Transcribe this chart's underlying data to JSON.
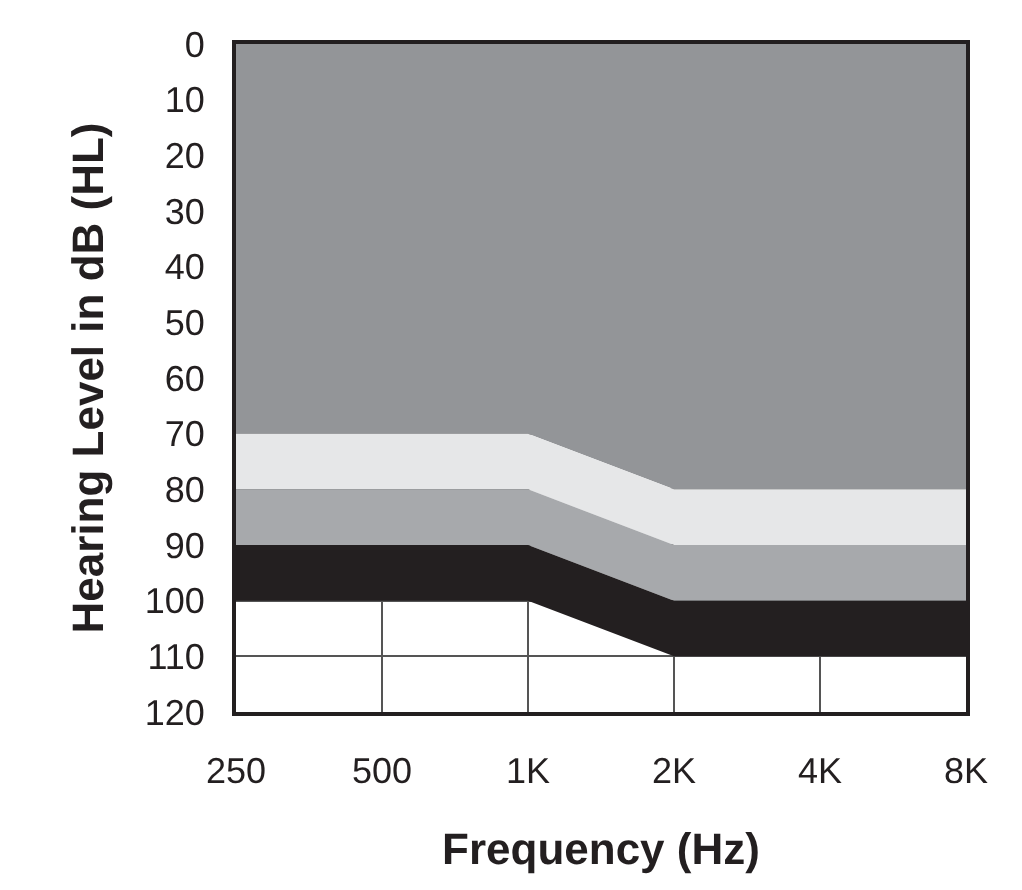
{
  "chart_data": {
    "type": "area",
    "stacked": true,
    "xlabel": "Frequency (Hz)",
    "ylabel": "Hearing Level in dB (HL)",
    "categories": [
      "250",
      "500",
      "1K",
      "2K",
      "4K",
      "8K"
    ],
    "series": [
      {
        "color": "#939598",
        "values": [
          70,
          70,
          70,
          80,
          80,
          80
        ]
      },
      {
        "color": "#e6e7e8",
        "values": [
          10,
          10,
          10,
          10,
          10,
          10
        ]
      },
      {
        "color": "#a7a9ac",
        "values": [
          10,
          10,
          10,
          10,
          10,
          10
        ]
      },
      {
        "color": "#231f20",
        "values": [
          10,
          10,
          10,
          10,
          10,
          10
        ]
      }
    ],
    "ylim": [
      120,
      0
    ],
    "yticks": [
      0,
      10,
      20,
      30,
      40,
      50,
      60,
      70,
      80,
      90,
      100,
      110,
      120
    ],
    "grid": true
  }
}
